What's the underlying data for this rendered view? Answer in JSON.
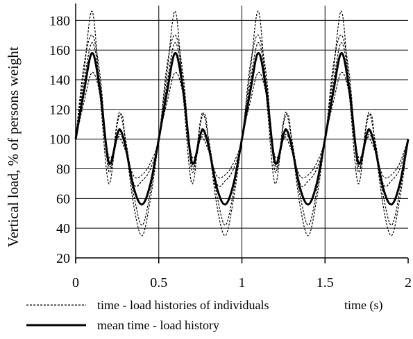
{
  "chart_data": {
    "type": "line",
    "title": "",
    "xlabel": "time (s)",
    "ylabel": "Vertical load, % of persons weight",
    "xlim": [
      0,
      2
    ],
    "ylim": [
      20,
      190
    ],
    "x_ticks": [
      "0",
      "0.5",
      "1",
      "1.5",
      "2"
    ],
    "y_ticks": [
      "20",
      "40",
      "60",
      "80",
      "100",
      "120",
      "140",
      "160",
      "180"
    ],
    "grid": true,
    "legend_position": "bottom",
    "series": [
      {
        "name": "mean time - load history",
        "style": "solid-thick",
        "x": [
          0,
          0.05,
          0.1,
          0.15,
          0.2,
          0.25,
          0.27,
          0.3,
          0.35,
          0.4,
          0.45,
          0.5,
          0.55,
          0.6,
          0.65,
          0.7,
          0.75,
          0.77,
          0.8,
          0.85,
          0.9,
          0.95,
          1.0,
          1.05,
          1.1,
          1.15,
          1.2,
          1.25,
          1.27,
          1.3,
          1.35,
          1.4,
          1.45,
          1.5,
          1.55,
          1.6,
          1.65,
          1.7,
          1.75,
          1.77,
          1.8,
          1.85,
          1.9,
          1.95,
          2.0
        ],
        "values": [
          100,
          132,
          158,
          130,
          84,
          103,
          106,
          95,
          67,
          56,
          70,
          100,
          132,
          158,
          130,
          84,
          103,
          106,
          95,
          67,
          56,
          70,
          100,
          132,
          158,
          130,
          84,
          103,
          106,
          95,
          67,
          56,
          70,
          100,
          132,
          158,
          130,
          84,
          103,
          106,
          95,
          67,
          56,
          70,
          100
        ]
      },
      {
        "name": "time - load histories of individuals",
        "style": "dashed",
        "x": [
          0,
          0.05,
          0.1,
          0.15,
          0.2,
          0.25,
          0.28,
          0.3,
          0.35,
          0.4,
          0.45,
          0.5
        ],
        "values": [
          100,
          145,
          186,
          125,
          70,
          110,
          116,
          98,
          55,
          35,
          60,
          100
        ],
        "periodic": 0.5
      },
      {
        "name": "time - load histories of individuals",
        "style": "dashed",
        "x": [
          0,
          0.05,
          0.1,
          0.15,
          0.2,
          0.25,
          0.27,
          0.3,
          0.35,
          0.4,
          0.45,
          0.5
        ],
        "values": [
          100,
          150,
          170,
          140,
          78,
          112,
          117,
          100,
          70,
          72,
          80,
          100
        ],
        "periodic": 0.5
      },
      {
        "name": "time - load histories of individuals",
        "style": "dashed",
        "x": [
          0,
          0.05,
          0.1,
          0.15,
          0.2,
          0.25,
          0.27,
          0.3,
          0.35,
          0.4,
          0.45,
          0.5
        ],
        "values": [
          100,
          125,
          145,
          128,
          88,
          100,
          103,
          94,
          62,
          42,
          65,
          100
        ],
        "periodic": 0.5
      },
      {
        "name": "time - load histories of individuals",
        "style": "dashed",
        "x": [
          0,
          0.05,
          0.1,
          0.15,
          0.2,
          0.25,
          0.27,
          0.3,
          0.35,
          0.4,
          0.45,
          0.5
        ],
        "values": [
          100,
          138,
          165,
          135,
          82,
          100,
          100,
          92,
          75,
          76,
          84,
          100
        ],
        "periodic": 0.5
      }
    ],
    "legend": [
      {
        "label": "time - load histories of individuals",
        "style": "dashed"
      },
      {
        "label": "mean time - load history",
        "style": "solid-thick"
      }
    ]
  }
}
